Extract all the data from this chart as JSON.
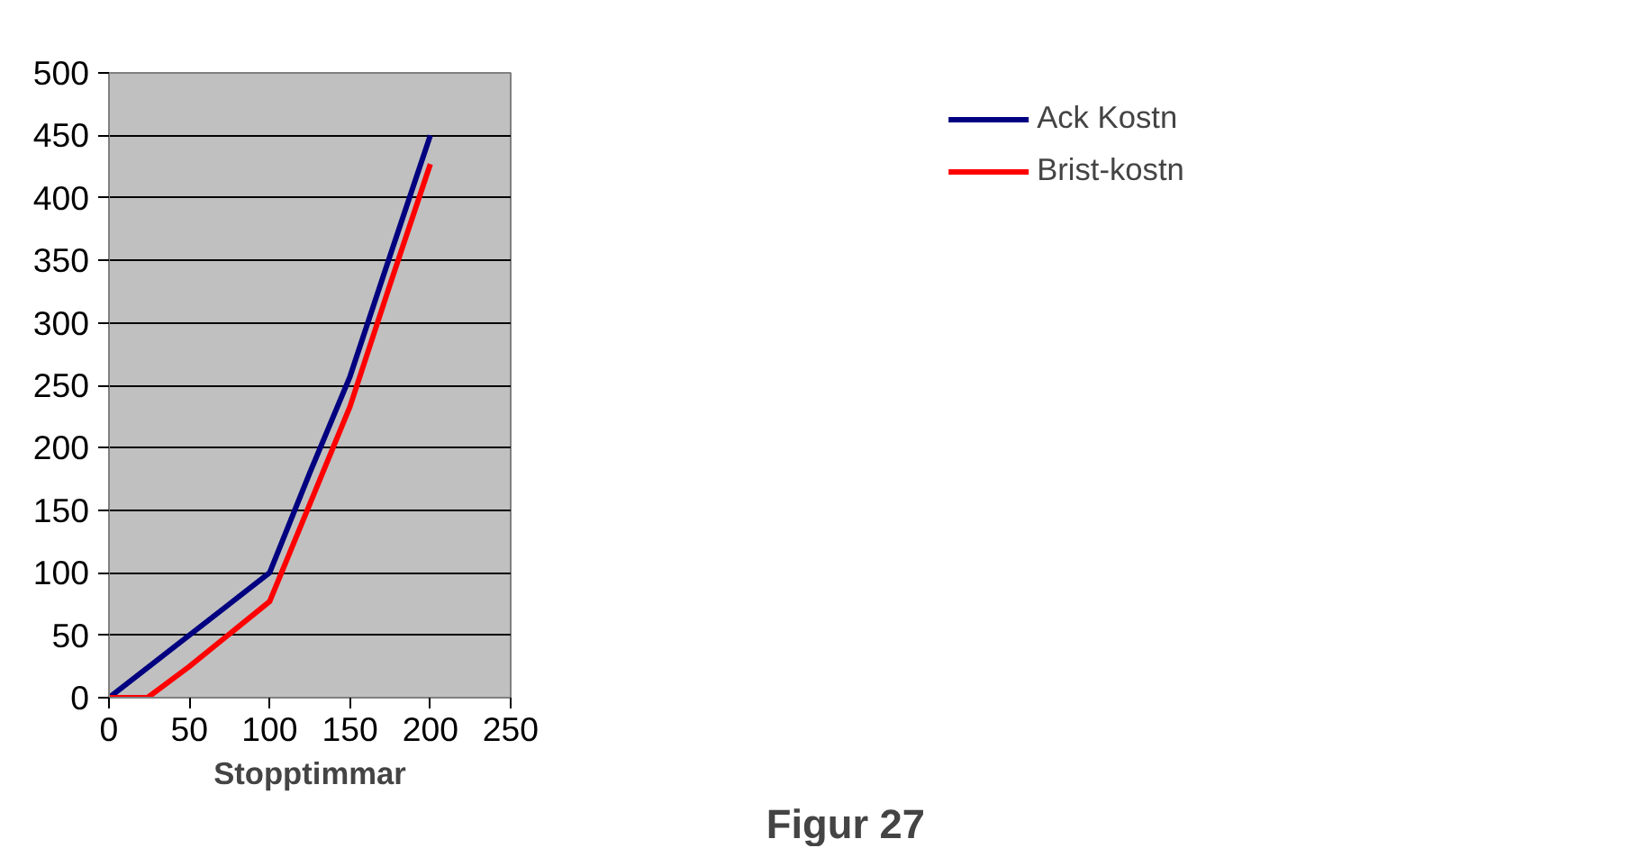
{
  "chart_data": {
    "type": "line",
    "xlabel": "Stopptimmar",
    "annotations": [
      "Figur 27"
    ],
    "xlim": [
      0,
      250
    ],
    "xticks": [
      0,
      50,
      100,
      150,
      200,
      250
    ],
    "ylim": [
      0,
      500
    ],
    "yticks": [
      0,
      50,
      100,
      150,
      200,
      250,
      300,
      350,
      400,
      450,
      500
    ],
    "grid": "y",
    "legend": "right",
    "line_style": "solid",
    "series": [
      {
        "name": "Ack Kostn",
        "color": "#000080",
        "x": [
          0,
          100,
          125,
          150,
          175,
          200
        ],
        "values": [
          0,
          100,
          180,
          257,
          354,
          450
        ]
      },
      {
        "name": "Brist-kostn",
        "color": "#ff0000",
        "x": [
          0,
          24,
          50,
          100,
          125,
          150,
          175,
          200
        ],
        "values": [
          0,
          0,
          25,
          77,
          155,
          233,
          331,
          427
        ]
      }
    ]
  }
}
